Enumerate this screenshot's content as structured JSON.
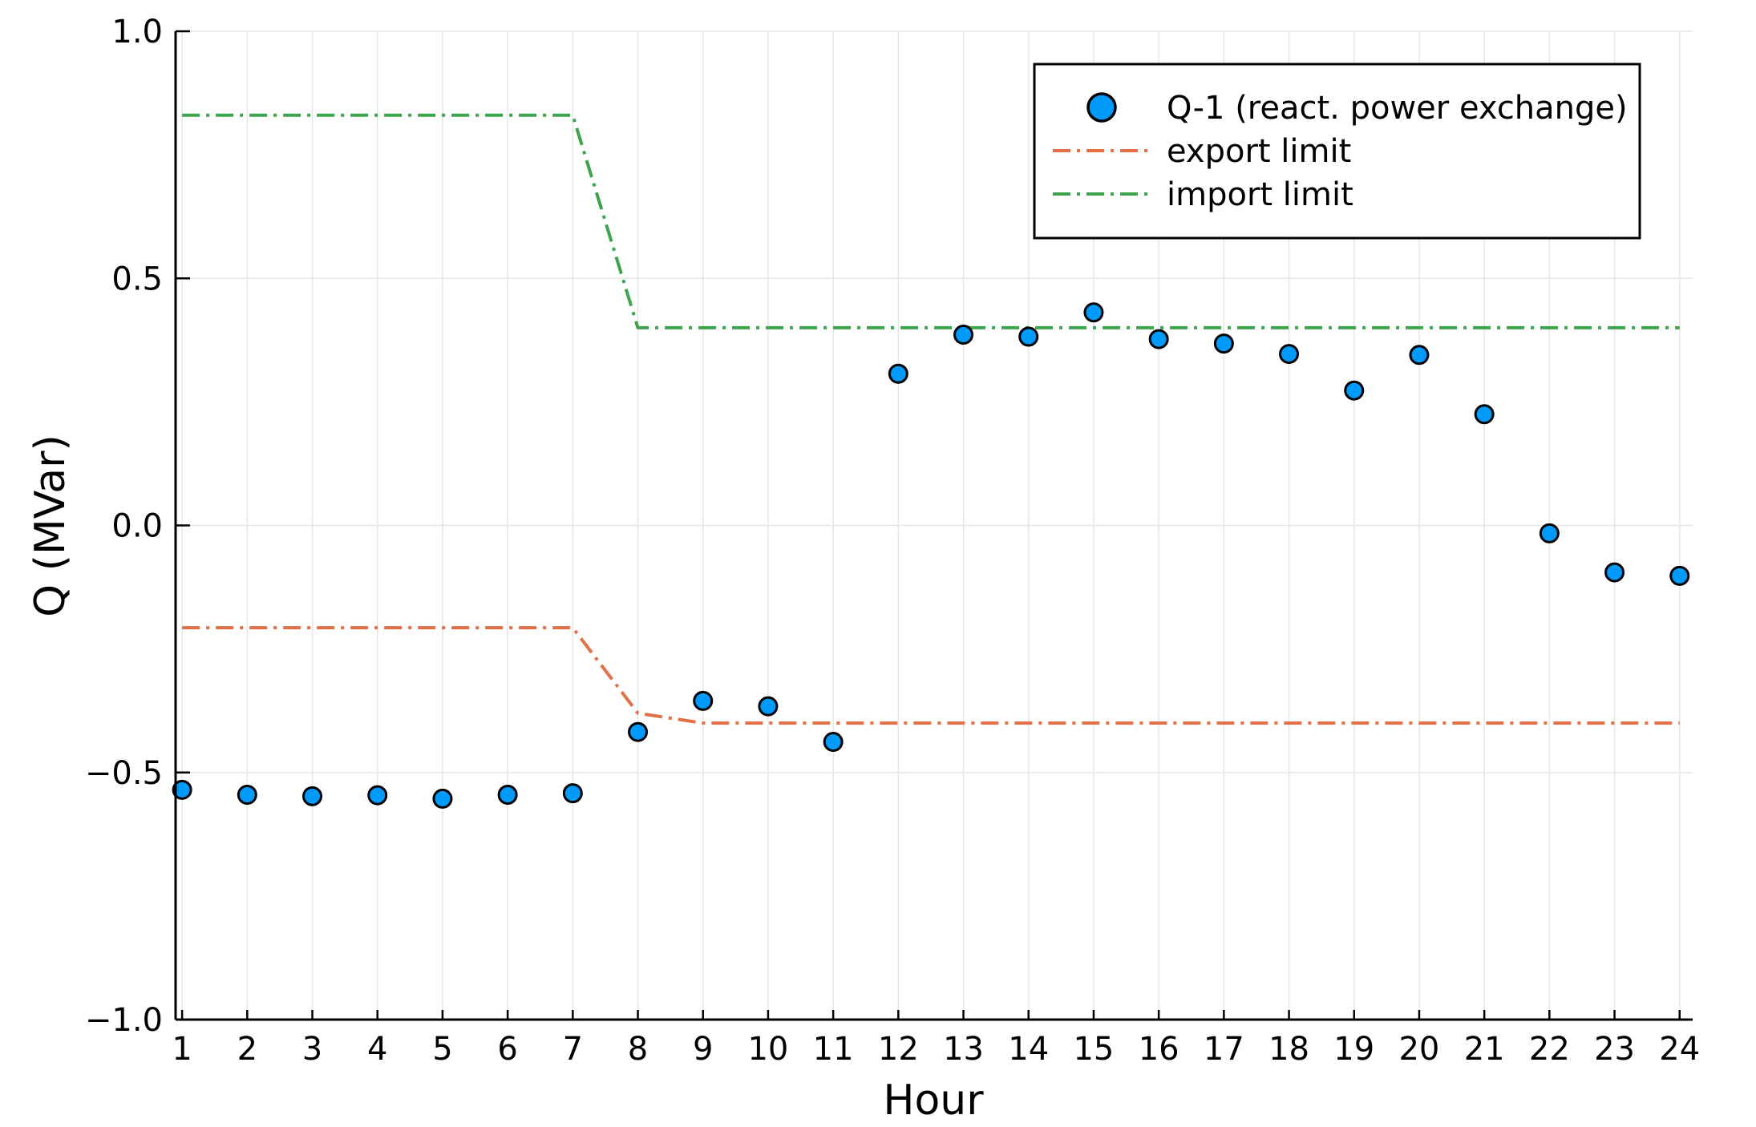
{
  "chart_data": {
    "type": "scatter",
    "title": "",
    "xlabel": "Hour",
    "ylabel": "Q (MVar)",
    "xlim": [
      0.9,
      24.2
    ],
    "ylim": [
      -1.0,
      1.0
    ],
    "grid": true,
    "legend_position": "top-right",
    "x": [
      1,
      2,
      3,
      4,
      5,
      6,
      7,
      8,
      9,
      10,
      11,
      12,
      13,
      14,
      15,
      16,
      17,
      18,
      19,
      20,
      21,
      22,
      23,
      24
    ],
    "x_tick_labels": [
      "1",
      "2",
      "3",
      "4",
      "5",
      "6",
      "7",
      "8",
      "9",
      "10",
      "11",
      "12",
      "13",
      "14",
      "15",
      "16",
      "17",
      "18",
      "19",
      "20",
      "21",
      "22",
      "23",
      "24"
    ],
    "y_ticks": [
      -1.0,
      -0.5,
      0.0,
      0.5,
      1.0
    ],
    "y_tick_labels": [
      "−1.0",
      "−0.5",
      "0.0",
      "0.5",
      "1.0"
    ],
    "series": [
      {
        "name": "Q-1 (react. power exchange)",
        "kind": "scatter",
        "color": "#009AFA",
        "values": [
          -0.535,
          -0.545,
          -0.548,
          -0.546,
          -0.553,
          -0.545,
          -0.542,
          -0.418,
          -0.355,
          -0.366,
          -0.438,
          0.307,
          0.386,
          0.382,
          0.431,
          0.377,
          0.368,
          0.347,
          0.273,
          0.345,
          0.225,
          -0.016,
          -0.095,
          -0.102
        ]
      },
      {
        "name": "export limit",
        "kind": "line",
        "style": "dashdot",
        "color": "#E26F46",
        "values": [
          -0.207,
          -0.207,
          -0.207,
          -0.207,
          -0.207,
          -0.207,
          -0.207,
          -0.38,
          -0.4,
          -0.4,
          -0.4,
          -0.4,
          -0.4,
          -0.4,
          -0.4,
          -0.4,
          -0.4,
          -0.4,
          -0.4,
          -0.4,
          -0.4,
          -0.4,
          -0.4,
          -0.4
        ]
      },
      {
        "name": "import limit",
        "kind": "line",
        "style": "dashdot",
        "color": "#3DA44D",
        "values": [
          0.83,
          0.83,
          0.83,
          0.83,
          0.83,
          0.83,
          0.83,
          0.4,
          0.4,
          0.4,
          0.4,
          0.4,
          0.4,
          0.4,
          0.4,
          0.4,
          0.4,
          0.4,
          0.4,
          0.4,
          0.4,
          0.4,
          0.4,
          0.4
        ]
      }
    ]
  }
}
